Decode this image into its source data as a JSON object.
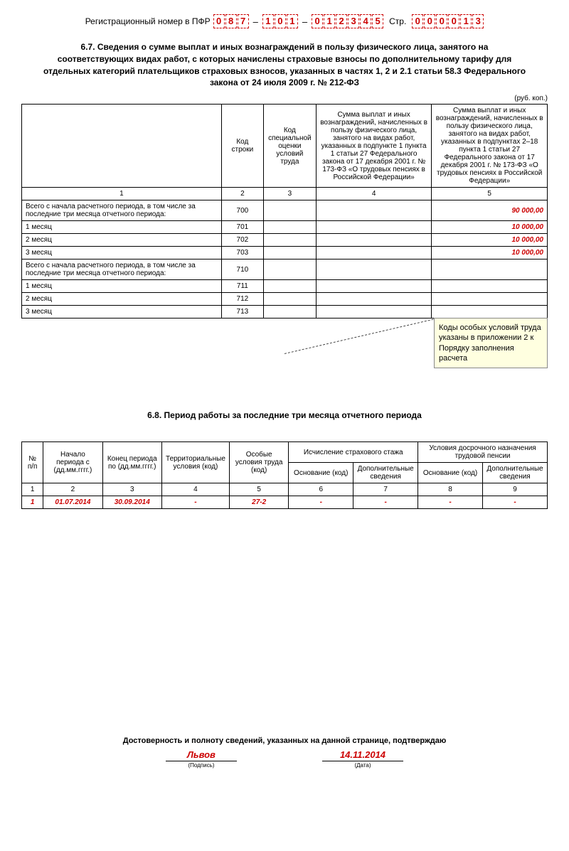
{
  "header": {
    "reg_label": "Регистрационный номер в ПФР",
    "reg_part1": [
      "0",
      "8",
      "7"
    ],
    "reg_part2": [
      "1",
      "0",
      "1"
    ],
    "reg_part3": [
      "0",
      "1",
      "2",
      "3",
      "4",
      "5"
    ],
    "page_label": "Стр.",
    "page_num": [
      "0",
      "0",
      "0",
      "0",
      "1",
      "3"
    ]
  },
  "section67": {
    "title": "6.7. Сведения о сумме выплат и иных вознаграждений в пользу физического лица, занятого на соответствующих видах работ, с которых начислены страховые взносы по дополнительному тарифу для отдельных категорий плательщиков страховых взносов, указанных в частях 1, 2 и 2.1 статьи 58.3 Федерального закона от 24 июля 2009 г. № 212-ФЗ",
    "unit": "(руб. коп.)",
    "headers": {
      "col1": "",
      "col2": "Код строки",
      "col3": "Код специальной оценки условий труда",
      "col4": "Сумма выплат и иных вознаграждений, начисленных в пользу физического лица, занятого на видах работ, указанных в подпункте 1 пункта 1 статьи 27 Федерального закона от 17 декабря 2001 г. № 173-ФЗ «О трудовых пенсиях в Российской Федерации»",
      "col5": "Сумма выплат и иных вознаграждений, начисленных в пользу физического лица, занятого на видах работ, указанных в подпунктах 2–18 пункта 1 статьи 27 Федерального закона от 17 декабря 2001 г. № 173-ФЗ «О трудовых пенсиях в Российской Федерации»"
    },
    "colnums": [
      "1",
      "2",
      "3",
      "4",
      "5"
    ],
    "rows": [
      {
        "label": "Всего с начала расчетного периода, в том числе за последние три месяца отчетного периода:",
        "code": "700",
        "c3": "",
        "c4": "",
        "c5": "90 000,00",
        "red": true
      },
      {
        "label": "1 месяц",
        "code": "701",
        "c3": "",
        "c4": "",
        "c5": "10 000,00",
        "red": true
      },
      {
        "label": "2 месяц",
        "code": "702",
        "c3": "",
        "c4": "",
        "c5": "10 000,00",
        "red": true
      },
      {
        "label": "3 месяц",
        "code": "703",
        "c3": "",
        "c4": "",
        "c5": "10 000,00",
        "red": true
      },
      {
        "label": "Всего с начала расчетного периода, в том числе за последние три месяца отчетного периода:",
        "code": "710",
        "c3": "",
        "c4": "",
        "c5": "",
        "red": false
      },
      {
        "label": "1 месяц",
        "code": "711",
        "c3": "",
        "c4": "",
        "c5": "",
        "red": false
      },
      {
        "label": "2 месяц",
        "code": "712",
        "c3": "",
        "c4": "",
        "c5": "",
        "red": false
      },
      {
        "label": "3 месяц",
        "code": "713",
        "c3": "",
        "c4": "",
        "c5": "",
        "red": false
      }
    ]
  },
  "callout": {
    "text": "Коды особых условий труда указаны в приложении 2 к Порядку заполнения расчета"
  },
  "section68": {
    "title": "6.8. Период работы за последние три месяца отчетного периода",
    "headers": {
      "h1": "№ п/п",
      "h2": "Начало периода с (дд.мм.гггг.)",
      "h3": "Конец периода по (дд.мм.гггг.)",
      "h4": "Территориальные условия (код)",
      "h5": "Особые условия труда (код)",
      "h6": "Исчисление страхового стажа",
      "h6a": "Основание (код)",
      "h6b": "Дополнительные сведения",
      "h7": "Условия досрочного назначения трудовой пенсии",
      "h7a": "Основание (код)",
      "h7b": "Дополнительные сведения"
    },
    "colnums": [
      "1",
      "2",
      "3",
      "4",
      "5",
      "6",
      "7",
      "8",
      "9"
    ],
    "data": {
      "n": "1",
      "start": "01.07.2014",
      "end": "30.09.2014",
      "terr": "-",
      "special": "27-2",
      "basis1": "-",
      "add1": "-",
      "basis2": "-",
      "add2": "-"
    }
  },
  "footer": {
    "title": "Достоверность и полноту сведений, указанных на данной странице, подтверждаю",
    "signature": "Львов",
    "sig_caption": "(Подпись)",
    "date": "14.11.2014",
    "date_caption": "(Дата)"
  },
  "style": {
    "accent_color": "#c00",
    "callout_bg": "#ffffe0",
    "border_color": "#000"
  }
}
